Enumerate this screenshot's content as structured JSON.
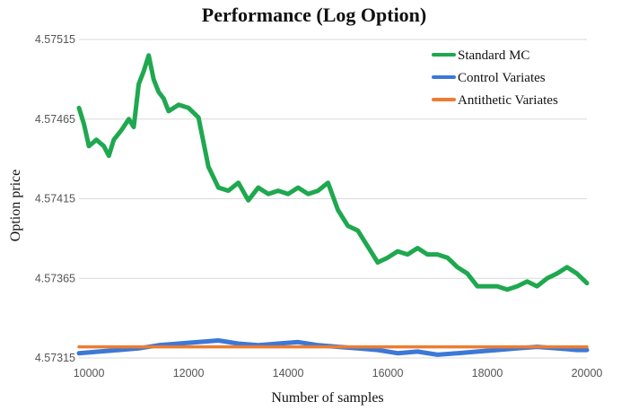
{
  "chart_data": {
    "type": "line",
    "title": "Performance (Log Option)",
    "xlabel": "Number of samples",
    "ylabel": "Option price",
    "xlim": [
      9800,
      20000
    ],
    "ylim": [
      4.57315,
      4.57515
    ],
    "x_ticks": [
      "10000",
      "12000",
      "14000",
      "16000",
      "18000",
      "20000"
    ],
    "y_ticks": [
      "4.57315",
      "4.57365",
      "4.57415",
      "4.57465",
      "4.57515"
    ],
    "grid": "horizontal",
    "legend_position": "top-right",
    "series": [
      {
        "name": "Standard MC",
        "color": "#1fa84f",
        "points": [
          [
            9800,
            4.57472
          ],
          [
            9900,
            4.57462
          ],
          [
            10000,
            4.57448
          ],
          [
            10150,
            4.57452
          ],
          [
            10300,
            4.57448
          ],
          [
            10400,
            4.57442
          ],
          [
            10500,
            4.57452
          ],
          [
            10650,
            4.57458
          ],
          [
            10800,
            4.57465
          ],
          [
            10900,
            4.5746
          ],
          [
            11000,
            4.57487
          ],
          [
            11100,
            4.57495
          ],
          [
            11200,
            4.57505
          ],
          [
            11300,
            4.5749
          ],
          [
            11400,
            4.57482
          ],
          [
            11500,
            4.57478
          ],
          [
            11600,
            4.5747
          ],
          [
            11800,
            4.57474
          ],
          [
            12000,
            4.57472
          ],
          [
            12200,
            4.57466
          ],
          [
            12400,
            4.57435
          ],
          [
            12600,
            4.57422
          ],
          [
            12800,
            4.5742
          ],
          [
            13000,
            4.57425
          ],
          [
            13200,
            4.57414
          ],
          [
            13400,
            4.57422
          ],
          [
            13600,
            4.57418
          ],
          [
            13800,
            4.5742
          ],
          [
            14000,
            4.57418
          ],
          [
            14200,
            4.57422
          ],
          [
            14400,
            4.57418
          ],
          [
            14600,
            4.5742
          ],
          [
            14800,
            4.57425
          ],
          [
            15000,
            4.57408
          ],
          [
            15200,
            4.57398
          ],
          [
            15400,
            4.57395
          ],
          [
            15600,
            4.57385
          ],
          [
            15800,
            4.57375
          ],
          [
            16000,
            4.57378
          ],
          [
            16200,
            4.57382
          ],
          [
            16400,
            4.5738
          ],
          [
            16600,
            4.57384
          ],
          [
            16800,
            4.5738
          ],
          [
            17000,
            4.5738
          ],
          [
            17200,
            4.57378
          ],
          [
            17400,
            4.57372
          ],
          [
            17600,
            4.57368
          ],
          [
            17800,
            4.5736
          ],
          [
            18000,
            4.5736
          ],
          [
            18200,
            4.5736
          ],
          [
            18400,
            4.57358
          ],
          [
            18600,
            4.5736
          ],
          [
            18800,
            4.57363
          ],
          [
            19000,
            4.5736
          ],
          [
            19200,
            4.57365
          ],
          [
            19400,
            4.57368
          ],
          [
            19600,
            4.57372
          ],
          [
            19800,
            4.57368
          ],
          [
            20000,
            4.57362
          ]
        ]
      },
      {
        "name": "Control Variates",
        "color": "#3b78d8",
        "points": [
          [
            9800,
            4.57318
          ],
          [
            10200,
            4.57319
          ],
          [
            10600,
            4.5732
          ],
          [
            11000,
            4.57321
          ],
          [
            11400,
            4.57323
          ],
          [
            11800,
            4.57324
          ],
          [
            12200,
            4.57325
          ],
          [
            12600,
            4.57326
          ],
          [
            13000,
            4.57324
          ],
          [
            13400,
            4.57323
          ],
          [
            13800,
            4.57324
          ],
          [
            14200,
            4.57325
          ],
          [
            14600,
            4.57323
          ],
          [
            15000,
            4.57322
          ],
          [
            15400,
            4.57321
          ],
          [
            15800,
            4.5732
          ],
          [
            16200,
            4.57318
          ],
          [
            16600,
            4.57319
          ],
          [
            17000,
            4.57317
          ],
          [
            17400,
            4.57318
          ],
          [
            17800,
            4.57319
          ],
          [
            18200,
            4.5732
          ],
          [
            18600,
            4.57321
          ],
          [
            19000,
            4.57322
          ],
          [
            19400,
            4.57321
          ],
          [
            19800,
            4.5732
          ],
          [
            20000,
            4.5732
          ]
        ]
      },
      {
        "name": "Antithetic Variates",
        "color": "#ed7d31",
        "points": [
          [
            9800,
            4.57322
          ],
          [
            20000,
            4.57322
          ]
        ]
      }
    ]
  }
}
